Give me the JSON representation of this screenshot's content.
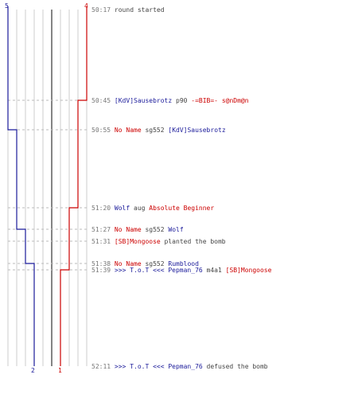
{
  "colors": {
    "ct": "#1a1a9a",
    "t": "#cc0000",
    "plain": "#444444",
    "time": "#777777",
    "grid": "#cccccc",
    "dash": "#bbbbbb",
    "center": "#666666"
  },
  "counts": {
    "ct_start": "5",
    "t_start": "4",
    "ct_end": "2",
    "t_end": "1"
  },
  "ct_steps": [
    5,
    4,
    3,
    2
  ],
  "t_steps": [
    4,
    3,
    2,
    1
  ],
  "events": [
    {
      "time": "50:17",
      "parts": [
        {
          "text": "round started",
          "team": "plain"
        }
      ]
    },
    {
      "time": "50:45",
      "parts": [
        {
          "text": "[KdV]Sausebrotz",
          "team": "ct"
        },
        {
          "text": "p90",
          "team": "plain"
        },
        {
          "text": "-=BIB=- s@nDm@n",
          "team": "t"
        }
      ]
    },
    {
      "time": "50:55",
      "parts": [
        {
          "text": "No Name",
          "team": "t"
        },
        {
          "text": "sg552",
          "team": "plain"
        },
        {
          "text": "[KdV]Sausebrotz",
          "team": "ct"
        }
      ]
    },
    {
      "time": "51:20",
      "parts": [
        {
          "text": "Wolf",
          "team": "ct"
        },
        {
          "text": "aug",
          "team": "plain"
        },
        {
          "text": "Absolute Beginner",
          "team": "t"
        }
      ]
    },
    {
      "time": "51:27",
      "parts": [
        {
          "text": "No Name",
          "team": "t"
        },
        {
          "text": "sg552",
          "team": "plain"
        },
        {
          "text": "Wolf",
          "team": "ct"
        }
      ]
    },
    {
      "time": "51:31",
      "parts": [
        {
          "text": "[SB]Mongoose",
          "team": "t"
        },
        {
          "text": "planted the bomb",
          "team": "plain"
        }
      ]
    },
    {
      "time": "51:38",
      "parts": [
        {
          "text": "No Name",
          "team": "t"
        },
        {
          "text": "sg552",
          "team": "plain"
        },
        {
          "text": "Rumblood",
          "team": "ct"
        }
      ]
    },
    {
      "time": "51:39",
      "parts": [
        {
          "text": ">>> T.o.T <<< Pepman_76",
          "team": "ct"
        },
        {
          "text": "m4a1",
          "team": "plain"
        },
        {
          "text": "[SB]Mongoose",
          "team": "t"
        }
      ]
    },
    {
      "time": "52:11",
      "parts": [
        {
          "text": ">>> T.o.T <<< Pepman_76",
          "team": "ct"
        },
        {
          "text": "defused the bomb",
          "team": "plain"
        }
      ]
    }
  ]
}
